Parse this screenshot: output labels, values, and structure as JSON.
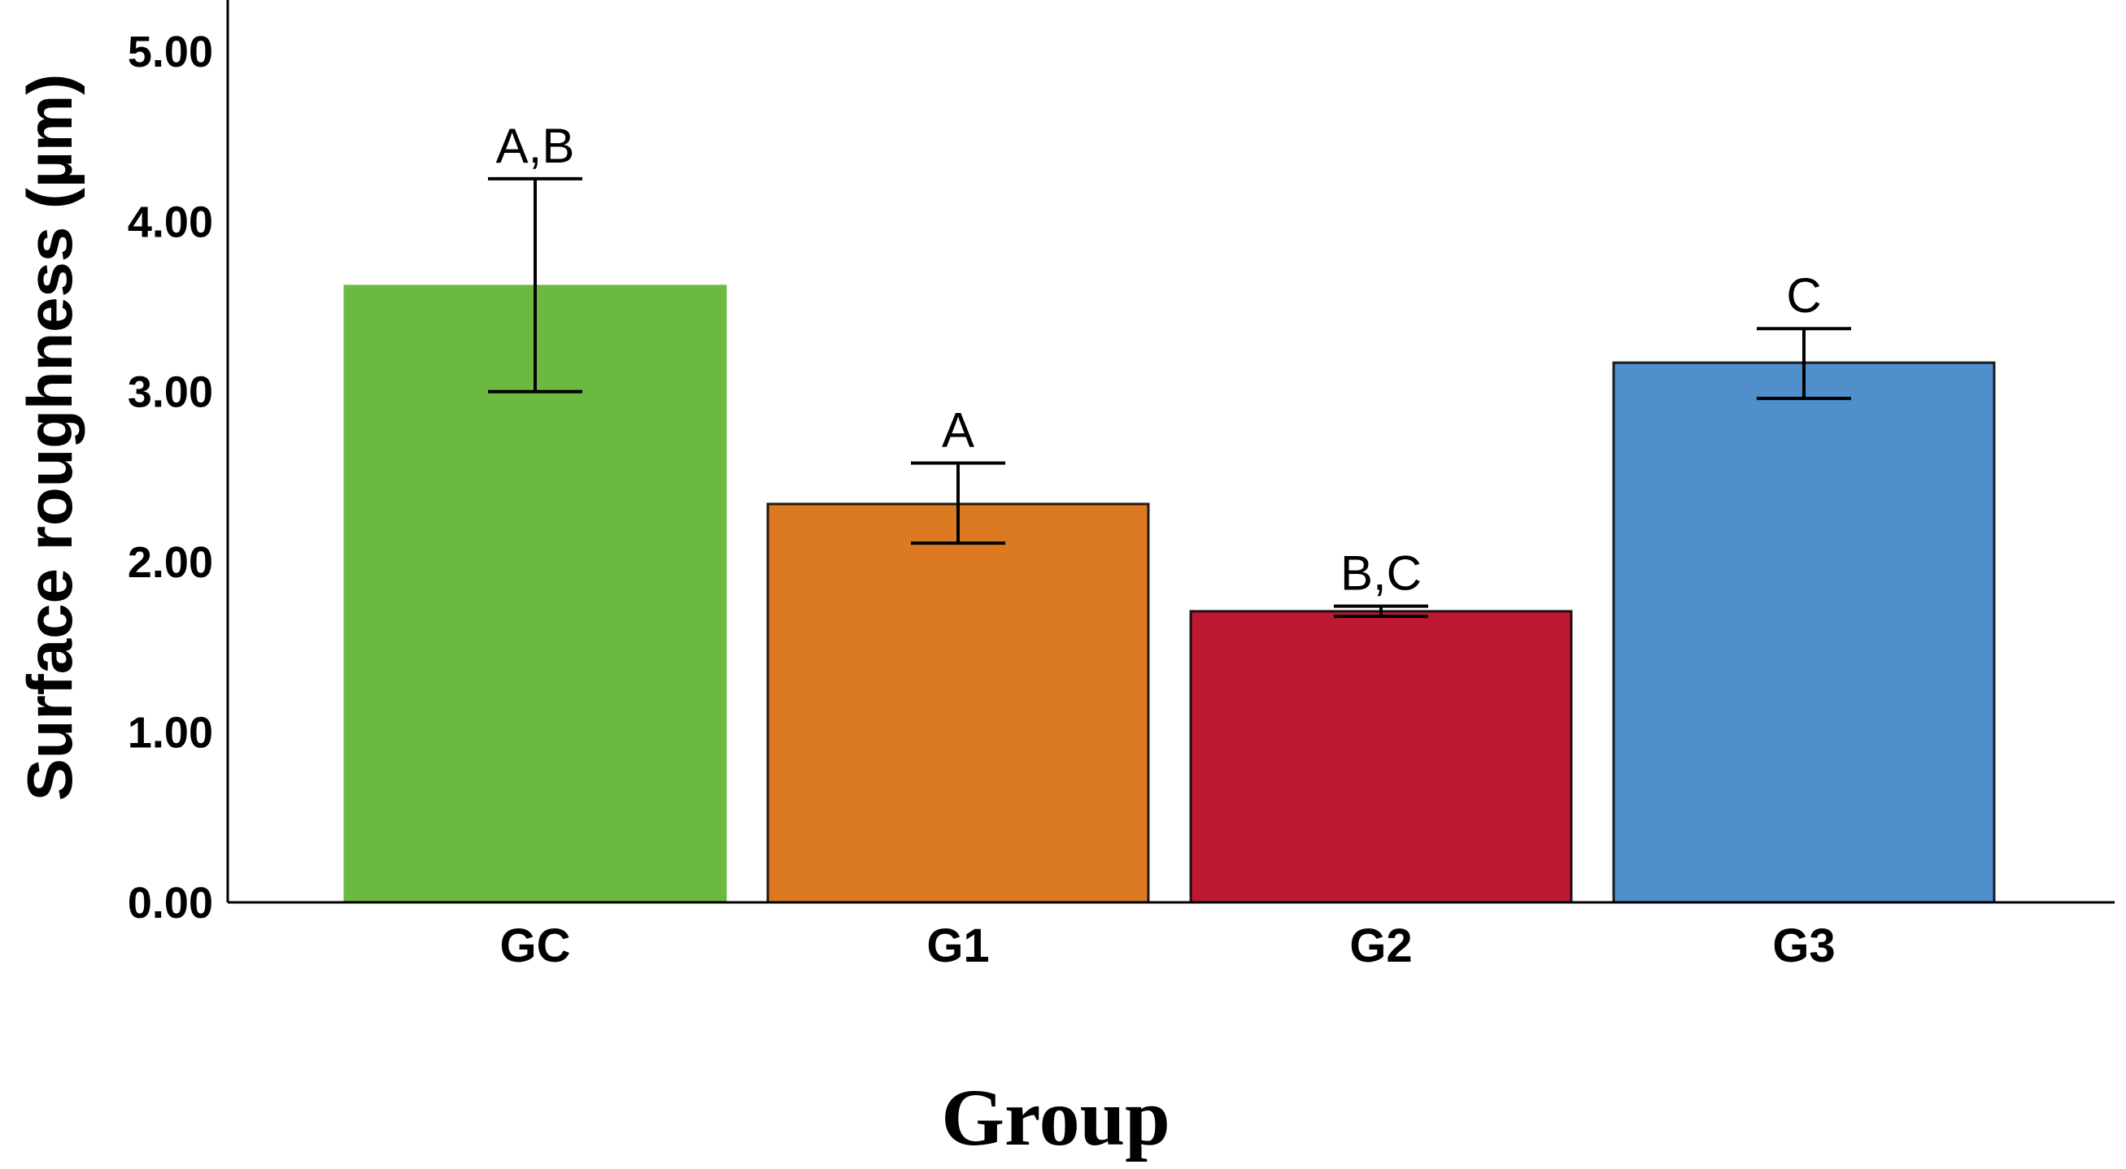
{
  "chart_data": {
    "type": "bar",
    "xlabel": "Group",
    "ylabel": "Surface roughness (µm)",
    "categories": [
      "GC",
      "G1",
      "G2",
      "G3"
    ],
    "values": [
      3.62,
      2.34,
      1.71,
      3.17
    ],
    "error_low": [
      3.0,
      2.11,
      1.68,
      2.96
    ],
    "error_high": [
      4.25,
      2.58,
      1.74,
      3.37
    ],
    "significance_labels": [
      "A,B",
      "A",
      "B,C",
      "C"
    ],
    "colors": [
      "#6CB941",
      "#DC7A21",
      "#BE1932",
      "#4F8FCC"
    ],
    "ylim": [
      0,
      5.3
    ],
    "yticks": [
      0,
      1,
      2,
      3,
      4,
      5
    ],
    "ytick_labels": [
      "0.00",
      "1.00",
      "2.00",
      "3.00",
      "4.00",
      "5.00"
    ],
    "grid": false,
    "legend": "none"
  }
}
